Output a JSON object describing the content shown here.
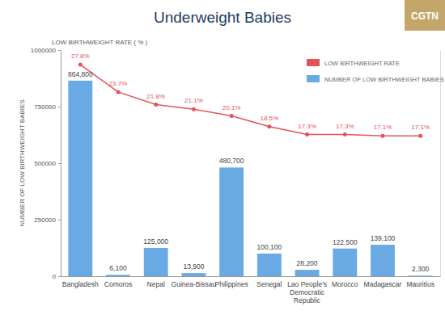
{
  "chart_data": {
    "type": "bar",
    "title": "Underweight Babies",
    "annotations": [
      "CGTN"
    ],
    "y_label": "NUMBER OF LOW BIRTHWEIGHT BABIES",
    "y2_label": "LOW BIRTHWEIGHT RATE ( % )",
    "categories": [
      "Bangladesh",
      "Comoros",
      "Nepal",
      "Guinea-Bissau",
      "Philippines",
      "Senegal",
      "Lao People's Democratic Republic",
      "Morocco",
      "Madagascar",
      "Mauritius"
    ],
    "series": [
      {
        "name": "LOW BIRTHWEIGHT RATE",
        "type": "line",
        "axis": "y2",
        "color": "#e4525c",
        "marker": "circle",
        "line_style": "solid",
        "values": [
          27.8,
          23.7,
          21.8,
          21.1,
          20.1,
          18.5,
          17.3,
          17.3,
          17.1,
          17.1
        ],
        "value_labels": [
          "27.8%",
          "23.7%",
          "21.8%",
          "21.1%",
          "20.1%",
          "18.5%",
          "17.3%",
          "17.3%",
          "17.1%",
          "17.1%"
        ]
      },
      {
        "name": "NUMBER OF LOW BIRTHWEIGHT BABIES",
        "type": "bar",
        "color": "#6aaae4",
        "values": [
          864800,
          6100,
          125000,
          13900,
          480700,
          100100,
          28200,
          122500,
          139100,
          2300
        ],
        "value_labels": [
          "864,800",
          "6,100",
          "125,000",
          "13,900",
          "480,700",
          "100,100",
          "28,200",
          "122,500",
          "139,100",
          "2,300"
        ]
      }
    ],
    "ylim": [
      0,
      1000000
    ],
    "yticks": [
      0,
      250000,
      500000,
      750000,
      1000000
    ],
    "y2lim": [
      -4,
      30
    ],
    "grid": false,
    "legend": "upper right",
    "data_labels": true
  }
}
